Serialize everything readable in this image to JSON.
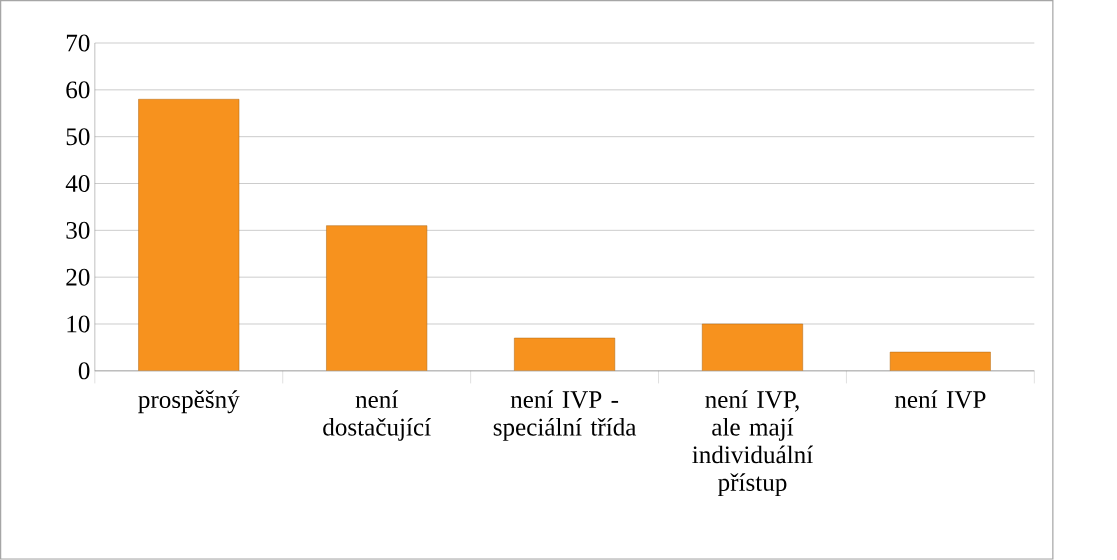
{
  "chart_data": {
    "type": "bar",
    "categories": [
      "prospěšný",
      "není dostačující",
      "není IVP - speciální třída",
      "není IVP, ale mají individuální přístup",
      "není IVP"
    ],
    "values": [
      58,
      31,
      7,
      10,
      4
    ],
    "color": "#f7921e",
    "ylim": [
      0,
      70
    ],
    "yticks": [
      0,
      10,
      20,
      30,
      40,
      50,
      60,
      70
    ],
    "grid": "y"
  }
}
